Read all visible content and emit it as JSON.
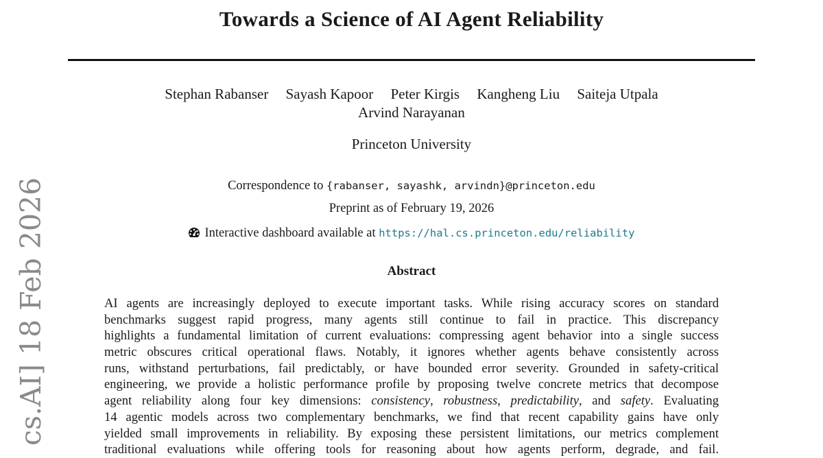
{
  "title": "Towards a Science of AI Agent Reliability",
  "authors": [
    "Stephan Rabanser",
    "Sayash Kapoor",
    "Peter Kirgis",
    "Kangheng Liu",
    "Saiteja Utpala",
    "Arvind Narayanan"
  ],
  "affiliation": "Princeton University",
  "correspondence": {
    "prefix": "Correspondence to ",
    "emails": "{rabanser, sayashk, arvindn}@princeton.edu"
  },
  "preprint": "Preprint as of February 19, 2026",
  "dashboard": {
    "icon": "gauge-icon",
    "text": "Interactive dashboard available at ",
    "url": "https://hal.cs.princeton.edu/reliability",
    "link_color": "#1b7a8a"
  },
  "abstract": {
    "heading": "Abstract",
    "lines": [
      "AI agents are increasingly deployed to execute important tasks. While rising accuracy scores on standard",
      "benchmarks suggest rapid progress, many agents still continue to fail in practice.  This discrepancy",
      "highlights a fundamental limitation of current evaluations: compressing agent behavior into a single success",
      "metric obscures critical operational flaws. Notably, it ignores whether agents behave consistently across",
      "runs, withstand perturbations, fail predictably, or have bounded error severity. Grounded in safety-critical",
      "engineering, we provide a holistic performance profile by proposing twelve concrete metrics that decompose"
    ],
    "line7": {
      "pre": "agent reliability along four key dimensions: ",
      "d1": "consistency",
      "s1": ", ",
      "d2": "robustness",
      "s2": ", ",
      "d3": "predictability",
      "s3": ", and ",
      "d4": "safety",
      "post": ". Evaluating"
    },
    "lines_after": [
      "14 agentic models across two complementary benchmarks, we find that recent capability gains have only",
      "yielded small improvements in reliability. By exposing these persistent limitations, our metrics complement",
      "traditional evaluations while offering tools for reasoning about how agents perform, degrade, and fail."
    ]
  },
  "arxiv_stamp": "cs.AI]  18 Feb 2026"
}
